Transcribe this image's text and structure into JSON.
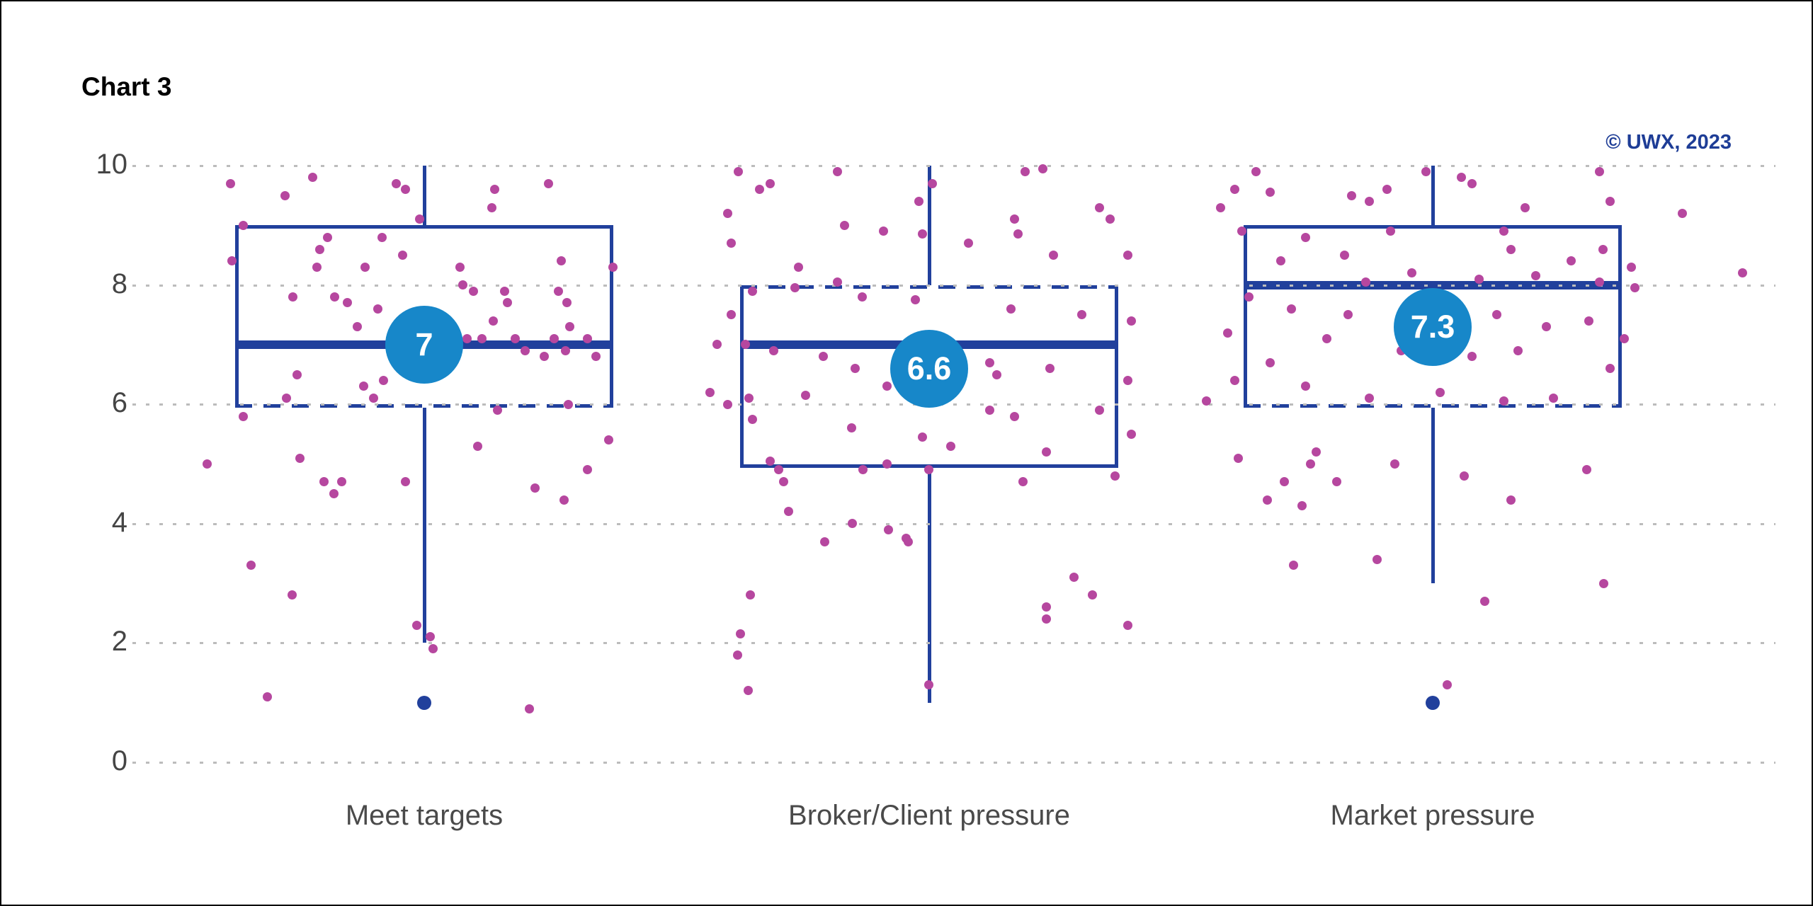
{
  "header": {
    "title": "Chart 3",
    "attribution": "© UWX, 2023"
  },
  "chart_data": {
    "type": "box",
    "title": "Chart 3",
    "ylabel": "",
    "xlabel": "",
    "ylim": [
      0,
      10
    ],
    "yticks": [
      0,
      2,
      4,
      6,
      8,
      10
    ],
    "grid": "horizontal-dotted",
    "legend": "none",
    "categories": [
      "Meet targets",
      "Broker/Client pressure",
      "Market pressure"
    ],
    "colors": {
      "box": "#21409c",
      "mean_bubble": "#1787c9",
      "mean_text": "#ffffff",
      "jitter": "#b6479f",
      "outlier": "#21409c",
      "grid": "#bcbcbc",
      "tick_label": "#454545",
      "category_label": "#4a4a4a",
      "title": "#000000",
      "attribution": "#1e3d96"
    },
    "series": [
      {
        "name": "Meet targets",
        "whisker_low": 2,
        "q1": 6,
        "median": 7,
        "q3": 9,
        "whisker_high": 10,
        "mean": 7,
        "mean_label": "7",
        "outliers": [
          1
        ],
        "dashed_edge": "bottom",
        "jitter": [
          [
            -274,
            9.7
          ],
          [
            -158,
            9.8
          ],
          [
            -40,
            9.7
          ],
          [
            -27,
            9.6
          ],
          [
            99,
            9.6
          ],
          [
            175,
            9.7
          ],
          [
            -197,
            9.5
          ],
          [
            95,
            9.3
          ],
          [
            -7,
            9.1
          ],
          [
            -256,
            9.0
          ],
          [
            -137,
            8.8
          ],
          [
            -60,
            8.8
          ],
          [
            -148,
            8.6
          ],
          [
            -31,
            8.5
          ],
          [
            -272,
            8.4
          ],
          [
            193,
            8.4
          ],
          [
            -152,
            8.3
          ],
          [
            -84,
            8.3
          ],
          [
            50,
            8.3
          ],
          [
            266,
            8.3
          ],
          [
            54,
            8.0
          ],
          [
            69,
            7.9
          ],
          [
            113,
            7.9
          ],
          [
            189,
            7.9
          ],
          [
            -186,
            7.8
          ],
          [
            -127,
            7.8
          ],
          [
            201,
            7.7
          ],
          [
            117,
            7.7
          ],
          [
            -109,
            7.7
          ],
          [
            -66,
            7.6
          ],
          [
            97,
            7.4
          ],
          [
            205,
            7.3
          ],
          [
            -95,
            7.3
          ],
          [
            40,
            7.2
          ],
          [
            60,
            7.1
          ],
          [
            81,
            7.1
          ],
          [
            128,
            7.1
          ],
          [
            183,
            7.1
          ],
          [
            230,
            7.1
          ],
          [
            142,
            6.9
          ],
          [
            199,
            6.9
          ],
          [
            242,
            6.8
          ],
          [
            169,
            6.8
          ],
          [
            -180,
            6.5
          ],
          [
            -58,
            6.4
          ],
          [
            -86,
            6.3
          ],
          [
            -72,
            6.1
          ],
          [
            -195,
            6.1
          ],
          [
            203,
            6.0
          ],
          [
            103,
            5.9
          ],
          [
            -256,
            5.8
          ],
          [
            260,
            5.4
          ],
          [
            75,
            5.3
          ],
          [
            -176,
            5.1
          ],
          [
            -307,
            5.0
          ],
          [
            230,
            4.9
          ],
          [
            -142,
            4.7
          ],
          [
            -117,
            4.7
          ],
          [
            -27,
            4.7
          ],
          [
            156,
            4.6
          ],
          [
            -128,
            4.5
          ],
          [
            197,
            4.4
          ],
          [
            -245,
            3.3
          ],
          [
            -187,
            2.8
          ],
          [
            -11,
            2.3
          ],
          [
            8,
            2.1
          ],
          [
            12,
            1.9
          ],
          [
            -222,
            1.1
          ],
          [
            148,
            0.9
          ]
        ]
      },
      {
        "name": "Broker/Client pressure",
        "whisker_low": 1,
        "q1": 5,
        "median": 7,
        "q3": 8,
        "whisker_high": 10,
        "mean": 6.6,
        "mean_label": "6.6",
        "outliers": [],
        "dashed_edge": "top",
        "jitter": [
          [
            -270,
            9.9
          ],
          [
            -130,
            9.9
          ],
          [
            135,
            9.9
          ],
          [
            160,
            9.95
          ],
          [
            -225,
            9.7
          ],
          [
            4,
            9.7
          ],
          [
            -240,
            9.6
          ],
          [
            -15,
            9.4
          ],
          [
            240,
            9.3
          ],
          [
            -285,
            9.2
          ],
          [
            120,
            9.1
          ],
          [
            255,
            9.1
          ],
          [
            -120,
            9.0
          ],
          [
            -65,
            8.9
          ],
          [
            -10,
            8.85
          ],
          [
            125,
            8.85
          ],
          [
            -280,
            8.7
          ],
          [
            55,
            8.7
          ],
          [
            175,
            8.5
          ],
          [
            280,
            8.5
          ],
          [
            -185,
            8.3
          ],
          [
            -130,
            8.05
          ],
          [
            -190,
            7.95
          ],
          [
            -250,
            7.9
          ],
          [
            -95,
            7.8
          ],
          [
            -20,
            7.75
          ],
          [
            115,
            7.6
          ],
          [
            -280,
            7.5
          ],
          [
            215,
            7.5
          ],
          [
            285,
            7.4
          ],
          [
            -300,
            7.0
          ],
          [
            -260,
            7.0
          ],
          [
            -220,
            6.9
          ],
          [
            -150,
            6.8
          ],
          [
            85,
            6.7
          ],
          [
            -105,
            6.6
          ],
          [
            -35,
            6.6
          ],
          [
            170,
            6.6
          ],
          [
            95,
            6.5
          ],
          [
            280,
            6.4
          ],
          [
            -60,
            6.3
          ],
          [
            -310,
            6.2
          ],
          [
            -175,
            6.15
          ],
          [
            -255,
            6.1
          ],
          [
            -285,
            6.0
          ],
          [
            85,
            5.9
          ],
          [
            240,
            5.9
          ],
          [
            120,
            5.8
          ],
          [
            -250,
            5.75
          ],
          [
            -110,
            5.6
          ],
          [
            285,
            5.5
          ],
          [
            -10,
            5.45
          ],
          [
            30,
            5.3
          ],
          [
            165,
            5.2
          ],
          [
            -225,
            5.05
          ],
          [
            -60,
            5.0
          ],
          [
            -213,
            4.9
          ],
          [
            -94,
            4.9
          ],
          [
            -1,
            4.9
          ],
          [
            262,
            4.8
          ],
          [
            -206,
            4.7
          ],
          [
            132,
            4.7
          ],
          [
            -199,
            4.2
          ],
          [
            -109,
            4.0
          ],
          [
            -58,
            3.9
          ],
          [
            -33,
            3.75
          ],
          [
            -148,
            3.7
          ],
          [
            -30,
            3.7
          ],
          [
            204,
            3.1
          ],
          [
            -253,
            2.8
          ],
          [
            230,
            2.8
          ],
          [
            165,
            2.6
          ],
          [
            165,
            2.4
          ],
          [
            280,
            2.3
          ],
          [
            -267,
            2.15
          ],
          [
            -271,
            1.8
          ],
          [
            -1,
            1.3
          ],
          [
            -256,
            1.2
          ]
        ]
      },
      {
        "name": "Market pressure",
        "whisker_low": 3,
        "q1": 6,
        "median": 8,
        "q3": 9,
        "whisker_high": 10,
        "mean": 7.3,
        "mean_label": "7.3",
        "outliers": [
          1
        ],
        "dashed_edge": "bottom",
        "jitter": [
          [
            -250,
            9.9
          ],
          [
            -10,
            9.9
          ],
          [
            235,
            9.9
          ],
          [
            40,
            9.8
          ],
          [
            55,
            9.7
          ],
          [
            -280,
            9.6
          ],
          [
            -65,
            9.6
          ],
          [
            -230,
            9.55
          ],
          [
            -115,
            9.5
          ],
          [
            -90,
            9.4
          ],
          [
            250,
            9.4
          ],
          [
            130,
            9.3
          ],
          [
            -300,
            9.3
          ],
          [
            352,
            9.2
          ],
          [
            -270,
            8.9
          ],
          [
            -60,
            8.9
          ],
          [
            100,
            8.9
          ],
          [
            -180,
            8.8
          ],
          [
            240,
            8.6
          ],
          [
            110,
            8.6
          ],
          [
            -125,
            8.5
          ],
          [
            -215,
            8.4
          ],
          [
            195,
            8.4
          ],
          [
            280,
            8.3
          ],
          [
            437,
            8.2
          ],
          [
            -30,
            8.2
          ],
          [
            145,
            8.15
          ],
          [
            65,
            8.1
          ],
          [
            -95,
            8.05
          ],
          [
            235,
            8.05
          ],
          [
            285,
            7.95
          ],
          [
            -260,
            7.8
          ],
          [
            30,
            7.7
          ],
          [
            -200,
            7.6
          ],
          [
            -120,
            7.5
          ],
          [
            90,
            7.5
          ],
          [
            -40,
            7.4
          ],
          [
            220,
            7.4
          ],
          [
            160,
            7.3
          ],
          [
            -290,
            7.2
          ],
          [
            270,
            7.1
          ],
          [
            -150,
            7.1
          ],
          [
            -45,
            6.9
          ],
          [
            120,
            6.9
          ],
          [
            55,
            6.8
          ],
          [
            -230,
            6.7
          ],
          [
            250,
            6.6
          ],
          [
            -280,
            6.4
          ],
          [
            -180,
            6.3
          ],
          [
            10,
            6.2
          ],
          [
            -90,
            6.1
          ],
          [
            170,
            6.1
          ],
          [
            100,
            6.05
          ],
          [
            -320,
            6.05
          ],
          [
            -165,
            5.2
          ],
          [
            -275,
            5.1
          ],
          [
            -173,
            5.0
          ],
          [
            -54,
            5.0
          ],
          [
            217,
            4.9
          ],
          [
            44,
            4.8
          ],
          [
            -210,
            4.7
          ],
          [
            -136,
            4.7
          ],
          [
            -234,
            4.4
          ],
          [
            110,
            4.4
          ],
          [
            -185,
            4.3
          ],
          [
            -79,
            3.4
          ],
          [
            -197,
            3.3
          ],
          [
            241,
            3.0
          ],
          [
            73,
            2.7
          ],
          [
            20,
            1.3
          ]
        ]
      }
    ]
  }
}
